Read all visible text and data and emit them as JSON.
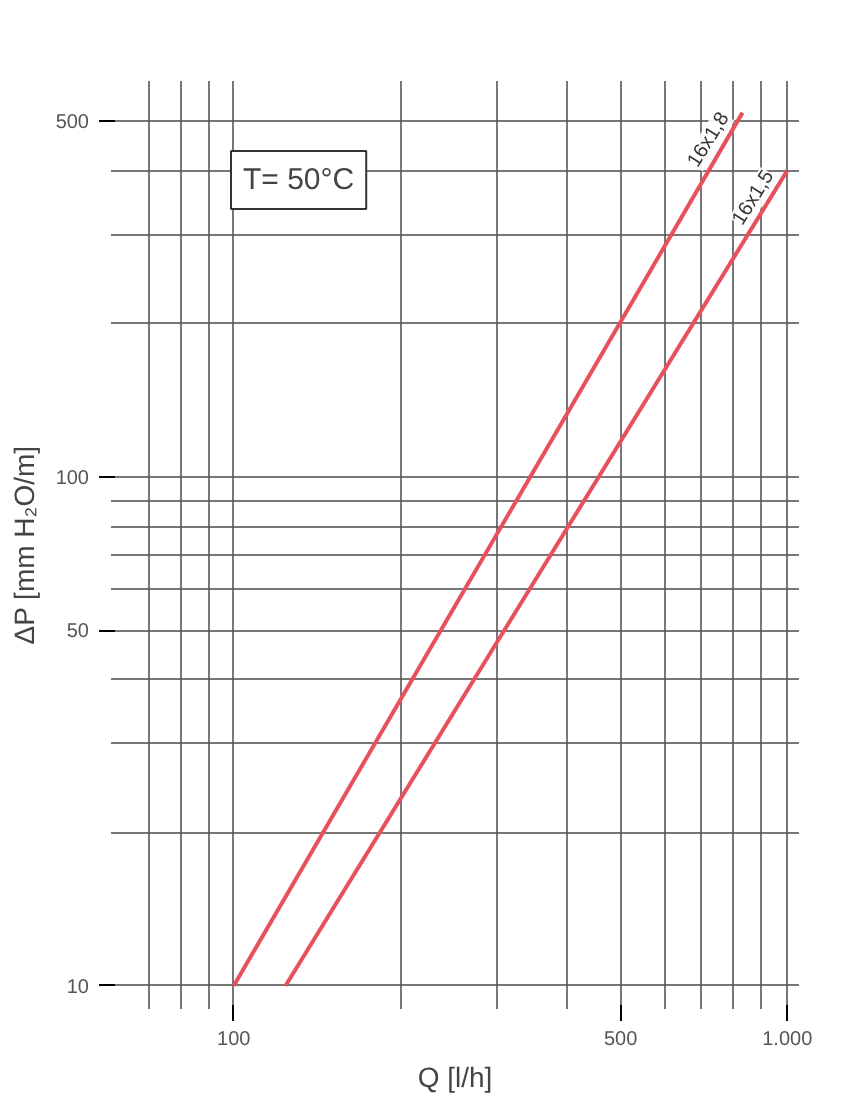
{
  "chart_data": {
    "type": "line",
    "xlabel": "Q [l/h]",
    "ylabel": "ΔP [mm H₂O/m]",
    "log": "xy",
    "grid": true,
    "marker": "none",
    "line_style": "solid",
    "xlim": [
      60,
      1050
    ],
    "ylim": [
      9,
      600
    ],
    "xticks": [
      100,
      500,
      {
        "value": 1000,
        "label": "1.000"
      }
    ],
    "yticks": [
      10,
      50,
      100,
      500
    ],
    "annotations": [
      "T= 50°C"
    ],
    "series": [
      {
        "name": "16x1,8",
        "color": "#e8505b",
        "x": [
          100,
          830
        ],
        "values": [
          10,
          520
        ]
      },
      {
        "name": "16x1,5",
        "color": "#e8505b",
        "x": [
          124,
          1000
        ],
        "values": [
          10,
          400
        ]
      }
    ]
  }
}
